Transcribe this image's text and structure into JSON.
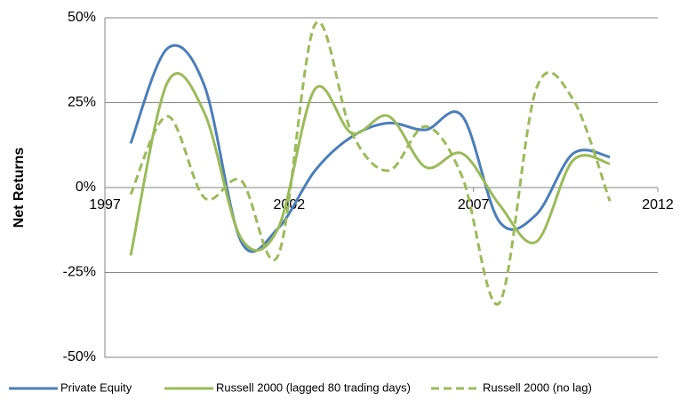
{
  "chart_data": {
    "type": "line",
    "y_label": "Net Returns",
    "x": [
      1997.7,
      1998.7,
      1999.7,
      2000.7,
      2001.7,
      2002.7,
      2003.7,
      2004.7,
      2005.7,
      2006.7,
      2007.7,
      2008.7,
      2009.7,
      2010.7
    ],
    "series": [
      {
        "name": "Private Equity",
        "color": "#4a7ebb",
        "line_style": "solid",
        "values": [
          13,
          41,
          30,
          -16,
          -12,
          5,
          15,
          19,
          17,
          21,
          -10,
          -8,
          10,
          9
        ]
      },
      {
        "name": "Russell 2000 (lagged 80 trading days)",
        "color": "#9bbb59",
        "line_style": "solid",
        "values": [
          -20,
          31,
          22,
          -15,
          -12,
          29,
          16,
          21,
          6,
          10,
          -5,
          -16,
          8,
          7
        ]
      },
      {
        "name": "Russell 2000 (no lag)",
        "color": "#9bbb59",
        "line_style": "dashed",
        "values": [
          -2,
          21,
          -3,
          2,
          -20,
          48,
          16,
          5,
          18,
          3,
          -34,
          29,
          26,
          -4
        ]
      }
    ],
    "xlim": [
      1997,
      2012
    ],
    "xticks": [
      1997,
      2002,
      2007,
      2012
    ],
    "ylim": [
      -50,
      50
    ],
    "yticks": [
      {
        "value": -50,
        "label": "-50%"
      },
      {
        "value": -25,
        "label": "-25%"
      },
      {
        "value": 0,
        "label": "0%"
      },
      {
        "value": 25,
        "label": "25%"
      },
      {
        "value": 50,
        "label": "50%"
      }
    ],
    "grid": true,
    "legend": "bottom"
  }
}
